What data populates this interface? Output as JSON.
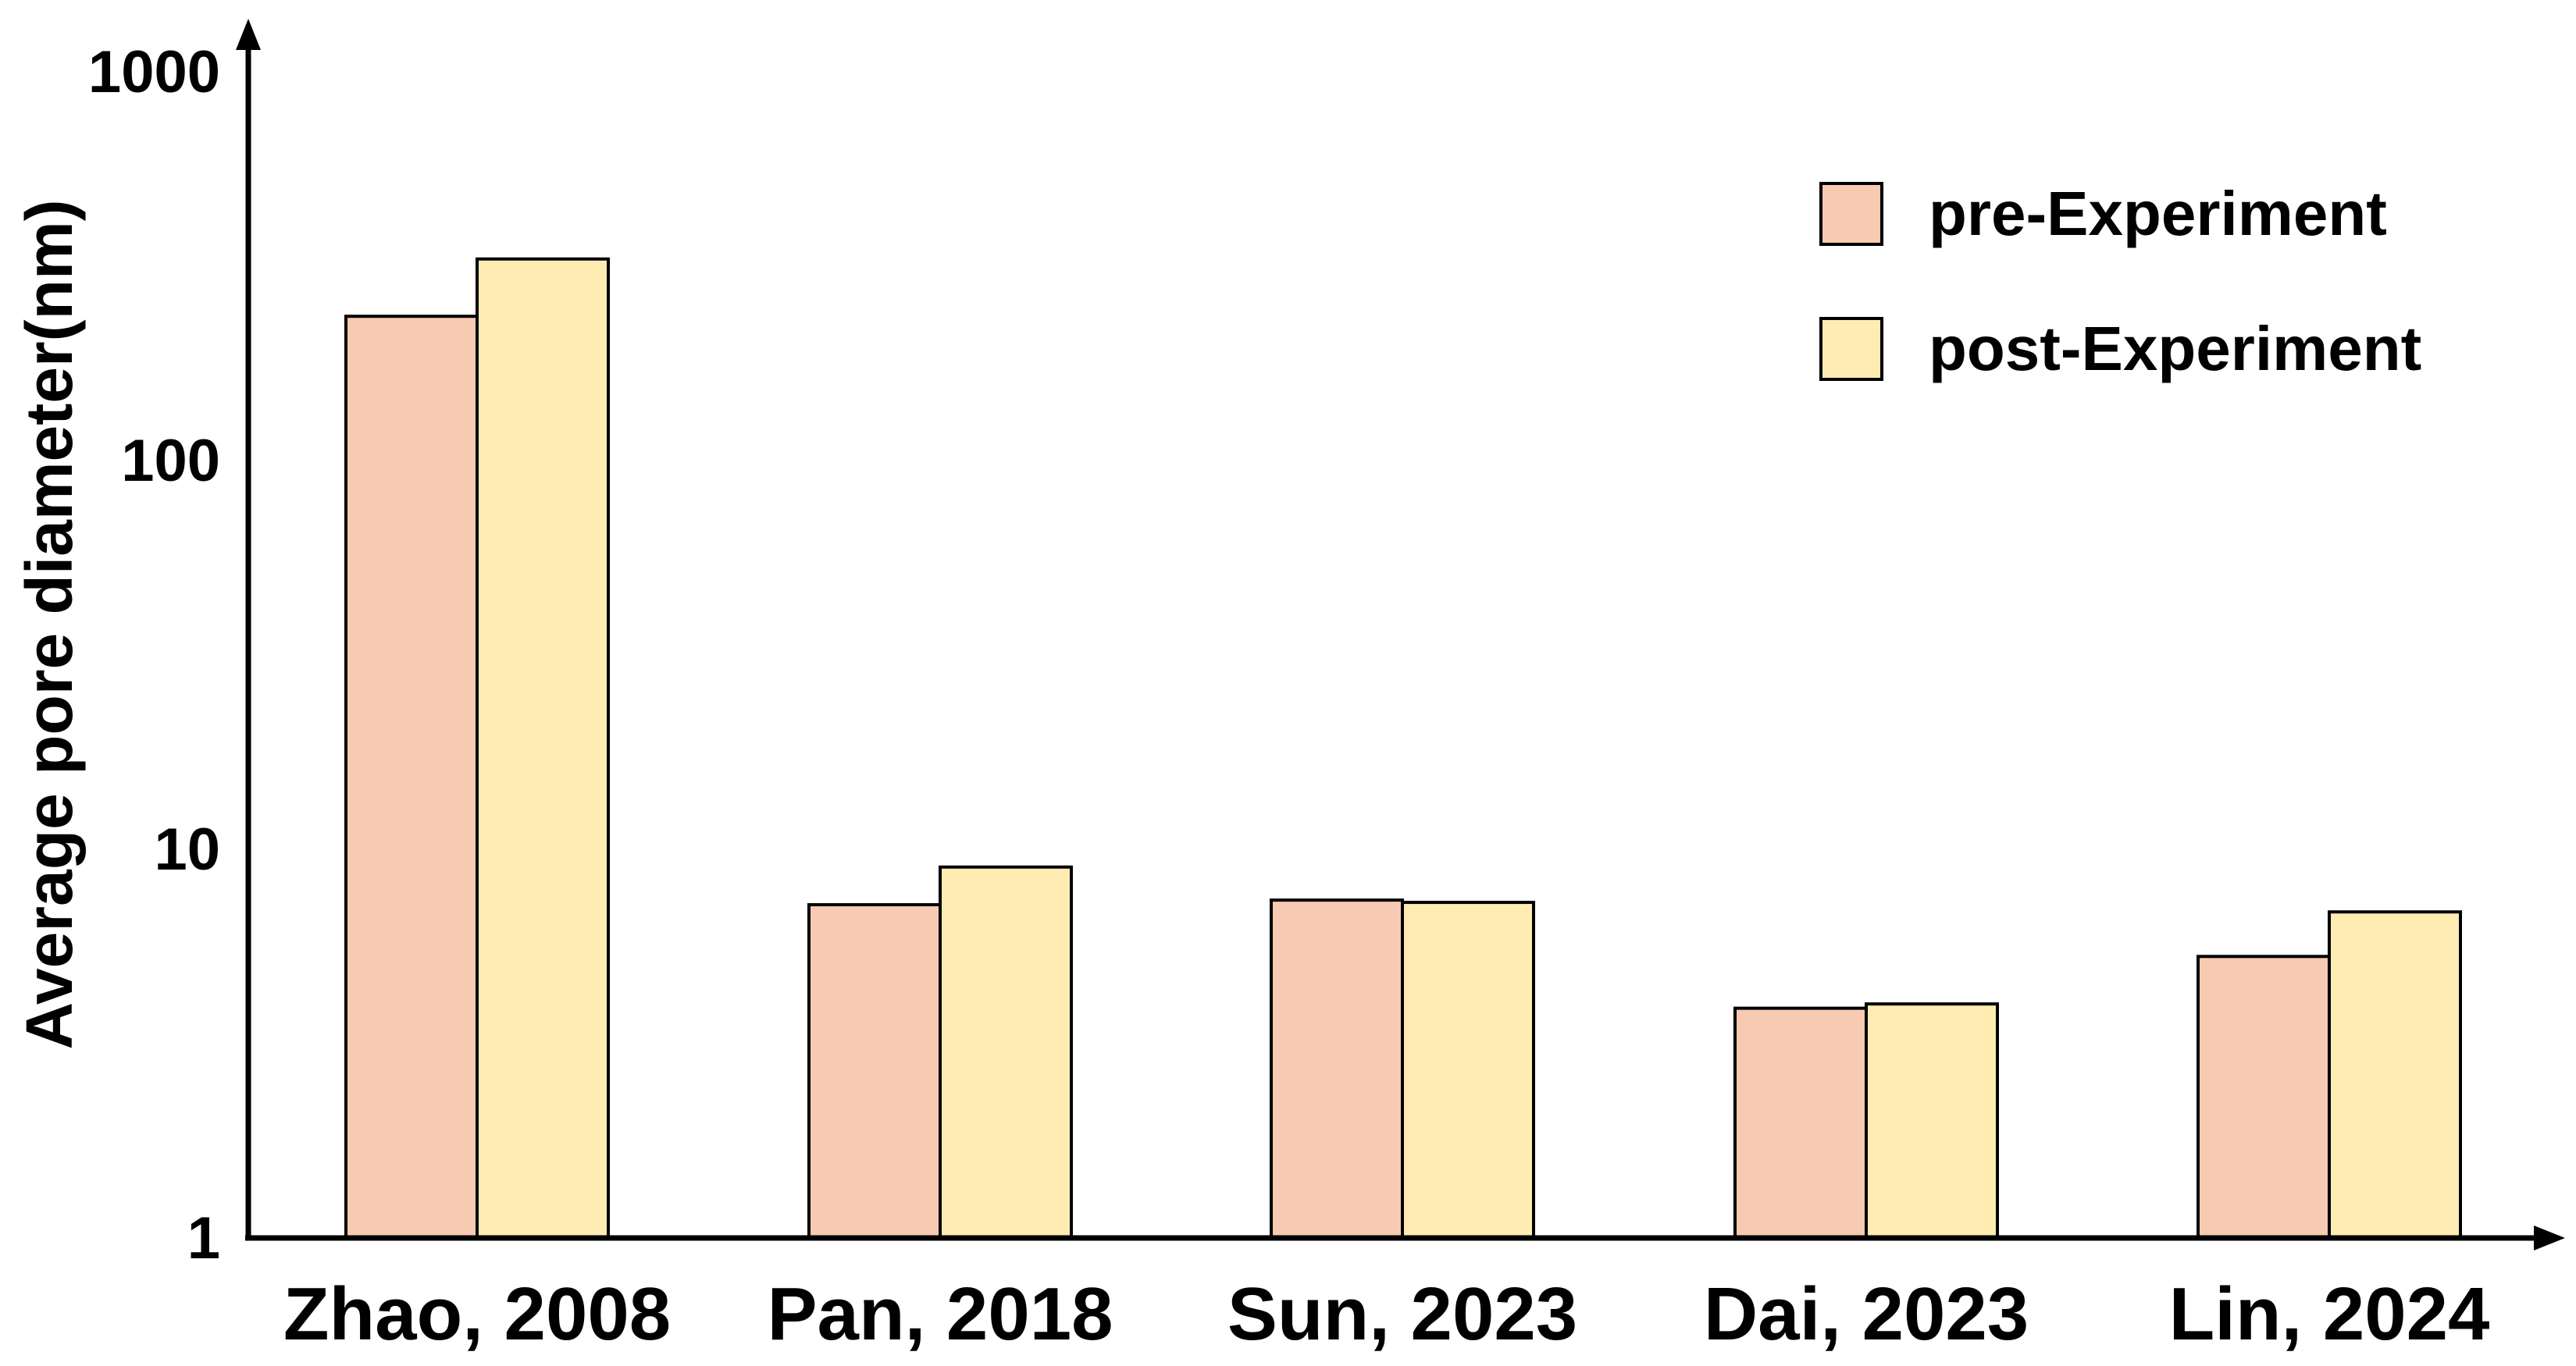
{
  "chart_data": {
    "type": "bar",
    "title": "",
    "xlabel": "",
    "ylabel": "Average pore diameter(nm)",
    "yscale": "log",
    "ylim": [
      1,
      1000
    ],
    "yticks": [
      1,
      10,
      100,
      1000
    ],
    "ytick_labels": [
      "1",
      "10",
      "100",
      "1000"
    ],
    "grid": false,
    "legend_position": "top-right",
    "categories": [
      "Zhao, 2008",
      "Pan, 2018",
      "Sun, 2023",
      "Dai, 2023",
      "Lin, 2024"
    ],
    "series": [
      {
        "name": "pre-Experiment",
        "color": "#F7CBB1",
        "values": [
          235,
          7.2,
          7.4,
          3.9,
          5.3
        ]
      },
      {
        "name": "post-Experiment",
        "color": "#FEECB3",
        "values": [
          330,
          9.0,
          7.3,
          4.0,
          6.9
        ]
      }
    ]
  }
}
